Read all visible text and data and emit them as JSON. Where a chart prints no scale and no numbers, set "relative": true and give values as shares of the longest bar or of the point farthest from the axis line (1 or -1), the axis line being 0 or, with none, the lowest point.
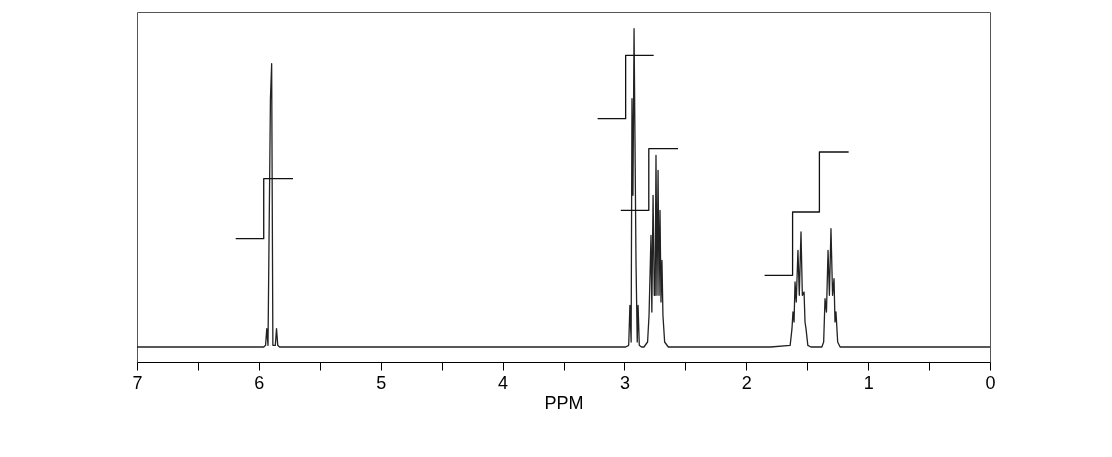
{
  "chart_data": {
    "type": "line",
    "xlabel": "PPM",
    "relative": true,
    "grid": false,
    "xlim": [
      7,
      0
    ],
    "xticks": [
      7,
      {
        "value": 6.5,
        "label": null
      },
      6,
      {
        "value": 5.5,
        "label": null
      },
      5,
      {
        "value": 4.5,
        "label": null
      },
      4,
      {
        "value": 3.5,
        "label": null
      },
      3,
      {
        "value": 2.5,
        "label": null
      },
      2,
      {
        "value": 1.5,
        "label": null
      },
      1,
      {
        "value": 0.5,
        "label": null
      },
      0
    ],
    "series": [
      {
        "color": "#222222",
        "x": [
          7,
          6.2,
          5.96,
          5.945,
          5.935,
          5.925,
          5.905,
          5.895,
          5.885,
          5.865,
          5.855,
          5.845,
          5.83,
          3.2,
          2.99,
          2.965,
          2.955,
          2.945,
          2.938,
          2.93,
          2.921,
          2.905,
          2.895,
          2.888,
          2.878,
          2.86,
          2.84,
          2.81,
          2.798,
          2.782,
          2.775,
          2.765,
          2.755,
          2.748,
          2.741,
          2.733,
          2.724,
          2.716,
          2.708,
          2.7,
          2.692,
          2.684,
          2.67,
          2.64,
          1.8,
          1.64,
          1.625,
          1.617,
          1.608,
          1.6,
          1.59,
          1.576,
          1.565,
          1.551,
          1.54,
          1.526,
          1.518,
          1.51,
          1.495,
          1.47,
          1.38,
          1.365,
          1.354,
          1.342,
          1.329,
          1.318,
          1.305,
          1.292,
          1.28,
          1.272,
          1.264,
          1.25,
          1.23,
          1.0,
          0
        ],
        "values": [
          0.045,
          0.045,
          0.045,
          0.05,
          0.1,
          0.05,
          0.79,
          0.895,
          0.05,
          0.05,
          0.1,
          0.05,
          0.045,
          0.045,
          0.045,
          0.05,
          0.17,
          0.06,
          0.79,
          0.5,
          1.0,
          0.3,
          0.06,
          0.17,
          0.05,
          0.045,
          0.045,
          0.06,
          0.14,
          0.38,
          0.15,
          0.5,
          0.2,
          0.2,
          0.62,
          0.2,
          0.575,
          0.2,
          0.455,
          0.18,
          0.305,
          0.14,
          0.06,
          0.045,
          0.045,
          0.05,
          0.1,
          0.15,
          0.12,
          0.24,
          0.18,
          0.335,
          0.2,
          0.39,
          0.2,
          0.21,
          0.12,
          0.1,
          0.05,
          0.045,
          0.045,
          0.06,
          0.19,
          0.15,
          0.335,
          0.2,
          0.4,
          0.2,
          0.25,
          0.12,
          0.15,
          0.06,
          0.045,
          0.045,
          0.045
        ]
      },
      {
        "color": "#111111",
        "x": [
          6.19,
          5.96,
          5.96,
          5.72
        ],
        "values": [
          0.37,
          0.37,
          0.55,
          0.55
        ]
      },
      {
        "color": "#111111",
        "x": [
          3.22,
          2.99,
          2.99,
          2.76
        ],
        "values": [
          0.73,
          0.73,
          0.92,
          0.92
        ]
      },
      {
        "color": "#111111",
        "x": [
          3.03,
          2.8,
          2.8,
          2.56
        ],
        "values": [
          0.455,
          0.455,
          0.64,
          0.64
        ]
      },
      {
        "color": "#111111",
        "x": [
          1.85,
          1.62,
          1.62,
          1.4,
          1.4,
          1.16
        ],
        "values": [
          0.26,
          0.26,
          0.45,
          0.45,
          0.63,
          0.63
        ]
      }
    ]
  }
}
